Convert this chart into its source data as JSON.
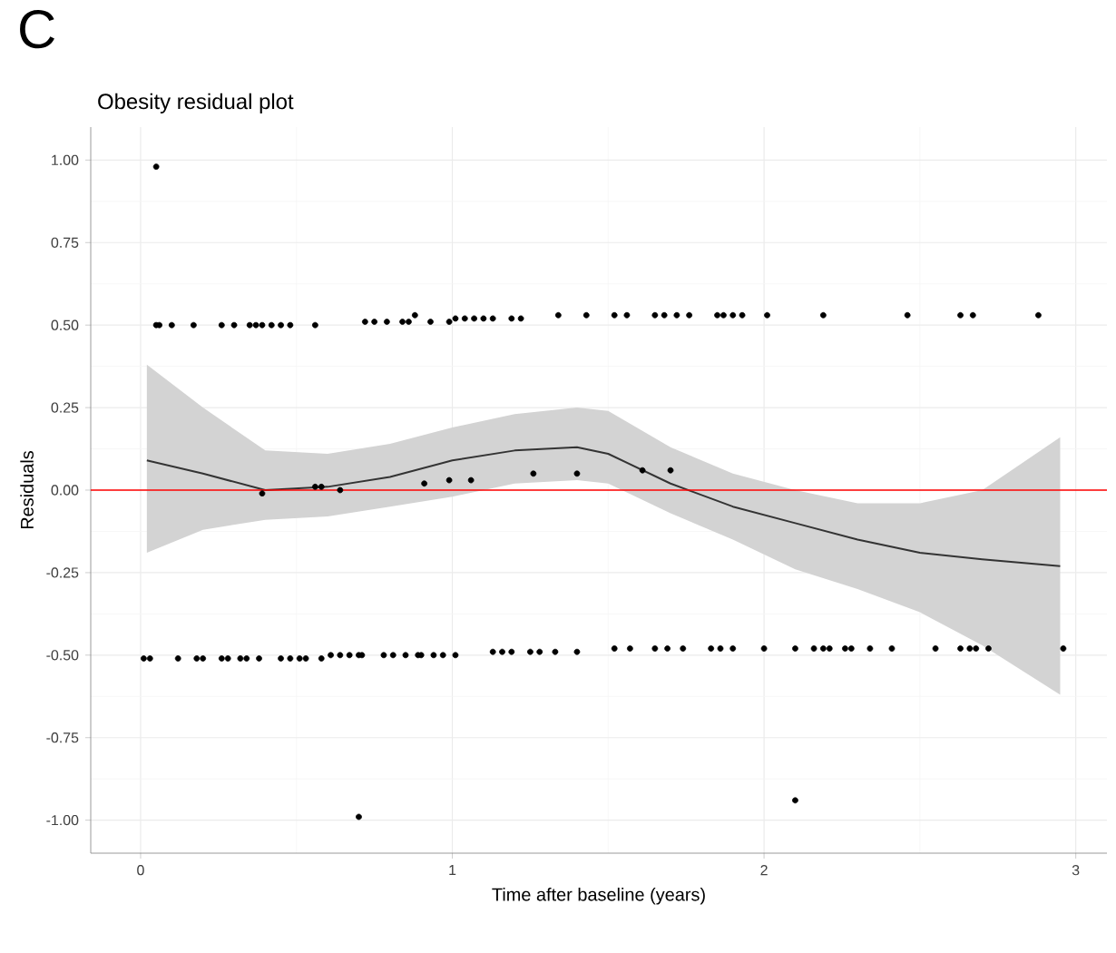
{
  "chart_data": {
    "type": "scatter",
    "title": "Obesity residual plot",
    "xlabel": "Time after baseline (years)",
    "ylabel": "Residuals",
    "annotations": [
      "C"
    ],
    "xlim": [
      -0.16,
      3.1
    ],
    "ylim": [
      -1.1,
      1.1
    ],
    "xticks": [
      0,
      1,
      2,
      3
    ],
    "yticks": [
      {
        "value": -1,
        "label": "-1.00"
      },
      {
        "value": -0.75,
        "label": "-0.75"
      },
      {
        "value": -0.5,
        "label": "-0.50"
      },
      {
        "value": -0.25,
        "label": "-0.25"
      },
      {
        "value": 0,
        "label": "0.00"
      },
      {
        "value": 0.25,
        "label": "0.25"
      },
      {
        "value": 0.5,
        "label": "0.50"
      },
      {
        "value": 0.75,
        "label": "0.75"
      },
      {
        "value": 1,
        "label": "1.00"
      }
    ],
    "grid": true,
    "ref_lines": [
      {
        "axis": "y",
        "value": 0,
        "color": "#ff0000"
      }
    ],
    "series": [
      {
        "marker": "circle",
        "color": "#000000",
        "x": [
          0.05,
          0.06,
          0.1,
          0.17,
          0.26,
          0.3,
          0.35,
          0.37,
          0.39,
          0.42,
          0.45,
          0.48,
          0.56,
          0.72,
          0.75,
          0.79,
          0.84,
          0.86,
          0.88,
          0.93,
          0.99,
          1.01,
          1.04,
          1.07,
          1.1,
          1.13,
          1.19,
          1.22,
          1.34,
          1.43,
          1.52,
          1.56,
          1.65,
          1.68,
          1.72,
          1.76,
          1.85,
          1.87,
          1.9,
          1.93,
          2.01,
          2.19,
          2.46,
          2.63,
          2.67,
          2.88,
          0.01,
          0.03,
          0.12,
          0.18,
          0.2,
          0.26,
          0.28,
          0.32,
          0.34,
          0.38,
          0.45,
          0.48,
          0.51,
          0.53,
          0.58,
          0.61,
          0.64,
          0.67,
          0.7,
          0.71,
          0.78,
          0.81,
          0.85,
          0.89,
          0.9,
          0.94,
          0.97,
          1.01,
          1.13,
          1.16,
          1.19,
          1.25,
          1.28,
          1.33,
          1.4,
          1.52,
          1.57,
          1.65,
          1.69,
          1.74,
          1.83,
          1.86,
          1.9,
          2.0,
          2.1,
          2.16,
          2.19,
          2.21,
          2.26,
          2.28,
          2.34,
          2.41,
          2.55,
          2.63,
          2.66,
          2.68,
          2.72,
          2.96,
          0.39,
          0.56,
          0.58,
          0.64,
          0.91,
          0.99,
          1.06,
          1.26,
          1.4,
          1.61,
          1.7,
          0.05,
          0.7,
          2.1
        ],
        "values": [
          0.5,
          0.5,
          0.5,
          0.5,
          0.5,
          0.5,
          0.5,
          0.5,
          0.5,
          0.5,
          0.5,
          0.5,
          0.5,
          0.51,
          0.51,
          0.51,
          0.51,
          0.51,
          0.53,
          0.51,
          0.51,
          0.52,
          0.52,
          0.52,
          0.52,
          0.52,
          0.52,
          0.52,
          0.53,
          0.53,
          0.53,
          0.53,
          0.53,
          0.53,
          0.53,
          0.53,
          0.53,
          0.53,
          0.53,
          0.53,
          0.53,
          0.53,
          0.53,
          0.53,
          0.53,
          0.53,
          -0.51,
          -0.51,
          -0.51,
          -0.51,
          -0.51,
          -0.51,
          -0.51,
          -0.51,
          -0.51,
          -0.51,
          -0.51,
          -0.51,
          -0.51,
          -0.51,
          -0.51,
          -0.5,
          -0.5,
          -0.5,
          -0.5,
          -0.5,
          -0.5,
          -0.5,
          -0.5,
          -0.5,
          -0.5,
          -0.5,
          -0.5,
          -0.5,
          -0.49,
          -0.49,
          -0.49,
          -0.49,
          -0.49,
          -0.49,
          -0.49,
          -0.48,
          -0.48,
          -0.48,
          -0.48,
          -0.48,
          -0.48,
          -0.48,
          -0.48,
          -0.48,
          -0.48,
          -0.48,
          -0.48,
          -0.48,
          -0.48,
          -0.48,
          -0.48,
          -0.48,
          -0.48,
          -0.48,
          -0.48,
          -0.48,
          -0.48,
          -0.48,
          -0.01,
          0.01,
          0.01,
          0.0,
          0.02,
          0.03,
          0.03,
          0.05,
          0.05,
          0.06,
          0.06,
          0.98,
          -0.99,
          -0.94
        ]
      },
      {
        "type": "line",
        "marker": "none",
        "color": "#333333",
        "x": [
          0.02,
          0.2,
          0.4,
          0.6,
          0.8,
          1.0,
          1.2,
          1.4,
          1.5,
          1.7,
          1.9,
          2.1,
          2.3,
          2.5,
          2.7,
          2.95
        ],
        "values": [
          0.09,
          0.05,
          0.0,
          0.01,
          0.04,
          0.09,
          0.12,
          0.13,
          0.11,
          0.02,
          -0.05,
          -0.1,
          -0.15,
          -0.19,
          -0.21,
          -0.23
        ],
        "lower": [
          -0.19,
          -0.12,
          -0.09,
          -0.08,
          -0.05,
          -0.02,
          0.02,
          0.03,
          0.02,
          -0.07,
          -0.15,
          -0.24,
          -0.3,
          -0.37,
          -0.47,
          -0.62
        ],
        "upper": [
          0.38,
          0.25,
          0.12,
          0.11,
          0.14,
          0.19,
          0.23,
          0.25,
          0.24,
          0.13,
          0.05,
          0.0,
          -0.04,
          -0.04,
          0.0,
          0.16
        ]
      }
    ]
  }
}
